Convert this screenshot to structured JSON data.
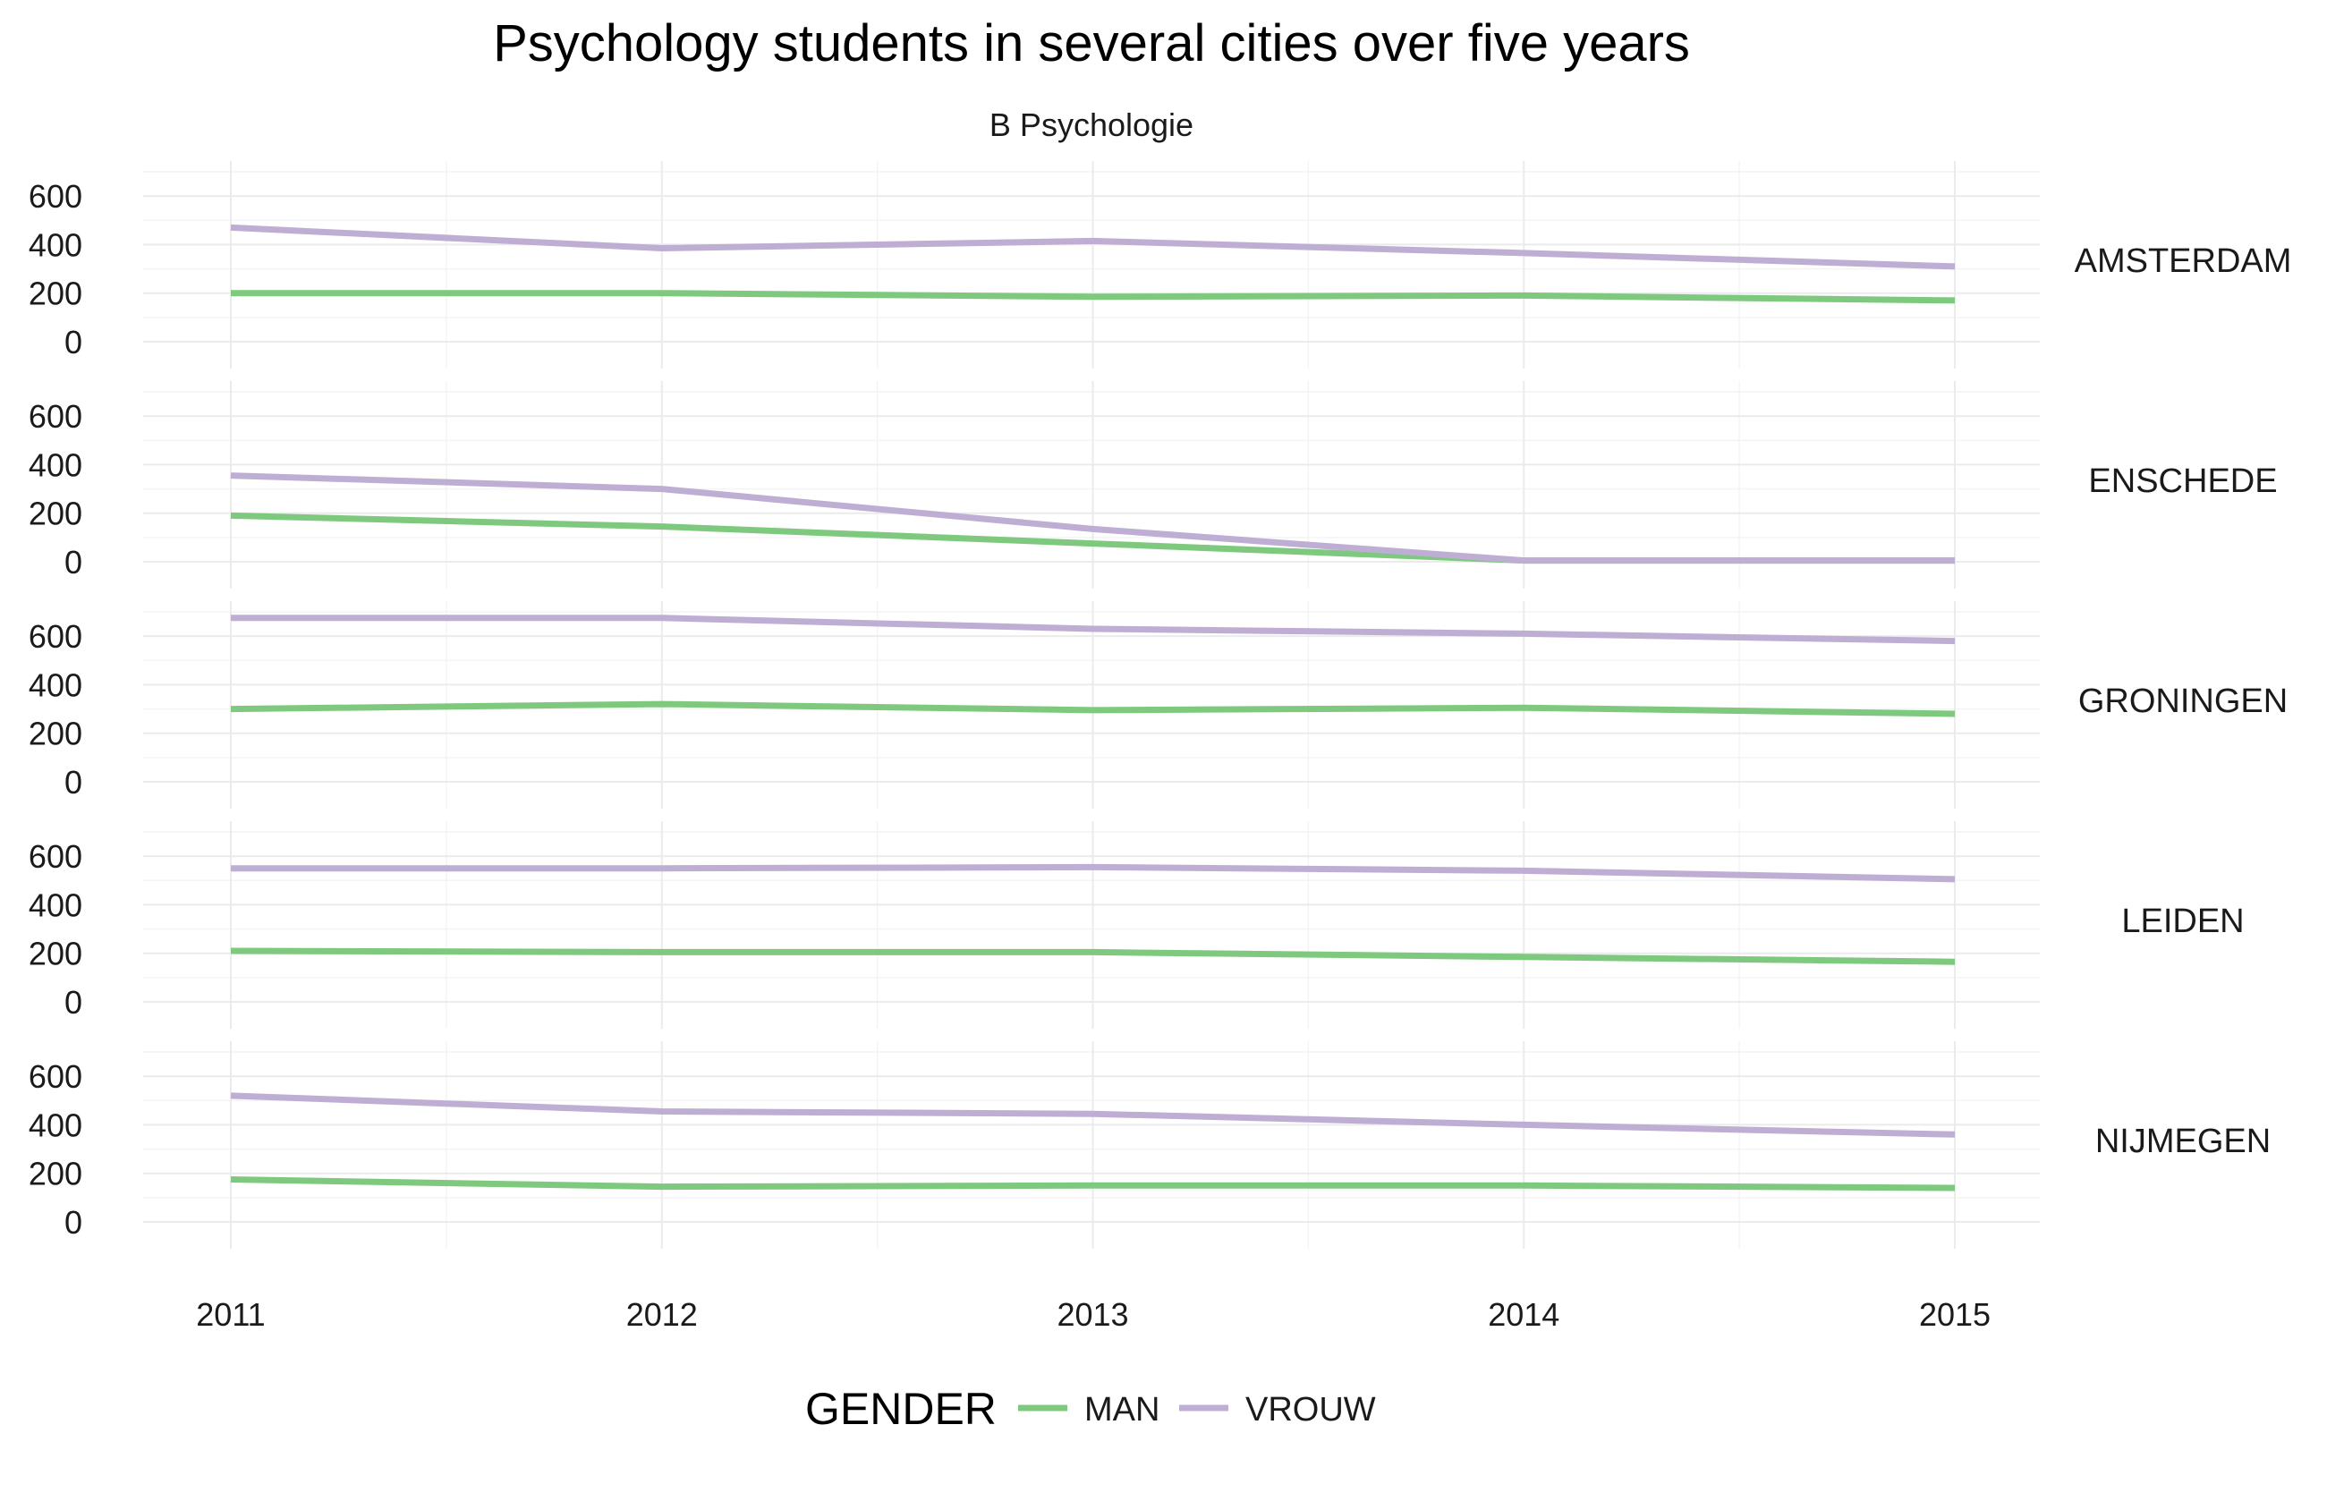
{
  "chart_data": {
    "type": "line",
    "title": "Psychology students in several cities over five years",
    "subtitle": "B Psychologie",
    "x": [
      2011,
      2012,
      2013,
      2014,
      2015
    ],
    "ylim": [
      0,
      700
    ],
    "yticks": [
      0,
      200,
      400,
      600
    ],
    "grid": true,
    "legend": {
      "title": "GENDER",
      "position": "bottom",
      "entries": [
        {
          "label": "MAN",
          "color": "#7fc97f"
        },
        {
          "label": "VROUW",
          "color": "#beaed4"
        }
      ]
    },
    "panels": [
      {
        "label": "AMSTERDAM",
        "series": [
          {
            "name": "MAN",
            "values": [
              200,
              200,
              185,
              190,
              170
            ]
          },
          {
            "name": "VROUW",
            "values": [
              470,
              385,
              415,
              365,
              310
            ]
          }
        ]
      },
      {
        "label": "ENSCHEDE",
        "series": [
          {
            "name": "MAN",
            "values": [
              190,
              145,
              75,
              5,
              5
            ]
          },
          {
            "name": "VROUW",
            "values": [
              355,
              300,
              135,
              5,
              5
            ]
          }
        ]
      },
      {
        "label": "GRONINGEN",
        "series": [
          {
            "name": "MAN",
            "values": [
              300,
              320,
              295,
              305,
              280
            ]
          },
          {
            "name": "VROUW",
            "values": [
              675,
              675,
              630,
              610,
              580
            ]
          }
        ]
      },
      {
        "label": "LEIDEN",
        "series": [
          {
            "name": "MAN",
            "values": [
              210,
              205,
              205,
              185,
              165
            ]
          },
          {
            "name": "VROUW",
            "values": [
              550,
              550,
              555,
              540,
              505
            ]
          }
        ]
      },
      {
        "label": "NIJMEGEN",
        "series": [
          {
            "name": "MAN",
            "values": [
              175,
              145,
              150,
              150,
              140
            ]
          },
          {
            "name": "VROUW",
            "values": [
              520,
              455,
              445,
              400,
              360
            ]
          }
        ]
      }
    ]
  }
}
